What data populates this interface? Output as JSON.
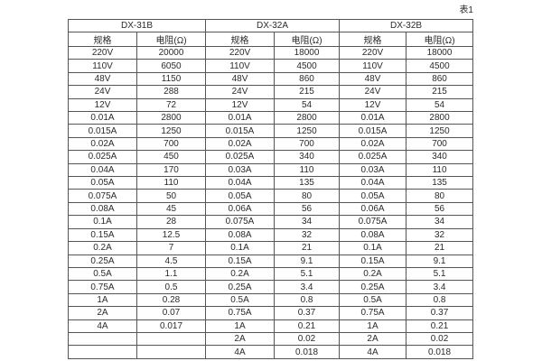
{
  "caption": "表1",
  "table": {
    "groups": [
      {
        "title": "DX-31B",
        "headers": [
          "规格",
          "电阻(Ω)"
        ]
      },
      {
        "title": "DX-32A",
        "headers": [
          "规格",
          "电阻(Ω)"
        ]
      },
      {
        "title": "DX-32B",
        "headers": [
          "规格",
          "电阻(Ω)"
        ]
      }
    ],
    "rows": [
      [
        "220V",
        "20000",
        "220V",
        "18000",
        "220V",
        "18000"
      ],
      [
        "110V",
        "6050",
        "110V",
        "4500",
        "110V",
        "4500"
      ],
      [
        "48V",
        "1150",
        "48V",
        "860",
        "48V",
        "860"
      ],
      [
        "24V",
        "288",
        "24V",
        "215",
        "24V",
        "215"
      ],
      [
        "12V",
        "72",
        "12V",
        "54",
        "12V",
        "54"
      ],
      [
        "0.01A",
        "2800",
        "0.01A",
        "2800",
        "0.01A",
        "2800"
      ],
      [
        "0.015A",
        "1250",
        "0.015A",
        "1250",
        "0.015A",
        "1250"
      ],
      [
        "0.02A",
        "700",
        "0.02A",
        "700",
        "0.02A",
        "700"
      ],
      [
        "0.025A",
        "450",
        "0.025A",
        "340",
        "0.025A",
        "340"
      ],
      [
        "0.04A",
        "170",
        "0.03A",
        "110",
        "0.03A",
        "110"
      ],
      [
        "0.05A",
        "110",
        "0.04A",
        "135",
        "0.04A",
        "135"
      ],
      [
        "0.075A",
        "50",
        "0.05A",
        "80",
        "0.05A",
        "80"
      ],
      [
        "0.08A",
        "45",
        "0.06A",
        "56",
        "0.06A",
        "56"
      ],
      [
        "0.1A",
        "28",
        "0.075A",
        "34",
        "0.075A",
        "34"
      ],
      [
        "0.15A",
        "12.5",
        "0.08A",
        "32",
        "0.08A",
        "32"
      ],
      [
        "0.2A",
        "7",
        "0.1A",
        "21",
        "0.1A",
        "21"
      ],
      [
        "0.25A",
        "4.5",
        "0.15A",
        "9.1",
        "0.15A",
        "9.1"
      ],
      [
        "0.5A",
        "1.1",
        "0.2A",
        "5.1",
        "0.2A",
        "5.1"
      ],
      [
        "0.75A",
        "0.5",
        "0.25A",
        "3.4",
        "0.25A",
        "3.4"
      ],
      [
        "1A",
        "0.28",
        "0.5A",
        "0.8",
        "0.5A",
        "0.8"
      ],
      [
        "2A",
        "0.07",
        "0.75A",
        "0.37",
        "0.75A",
        "0.37"
      ],
      [
        "4A",
        "0.017",
        "1A",
        "0.21",
        "1A",
        "0.21"
      ],
      [
        "",
        "",
        "2A",
        "0.02",
        "2A",
        "0.02"
      ],
      [
        "",
        "",
        "4A",
        "0.018",
        "4A",
        "0.018"
      ]
    ]
  }
}
